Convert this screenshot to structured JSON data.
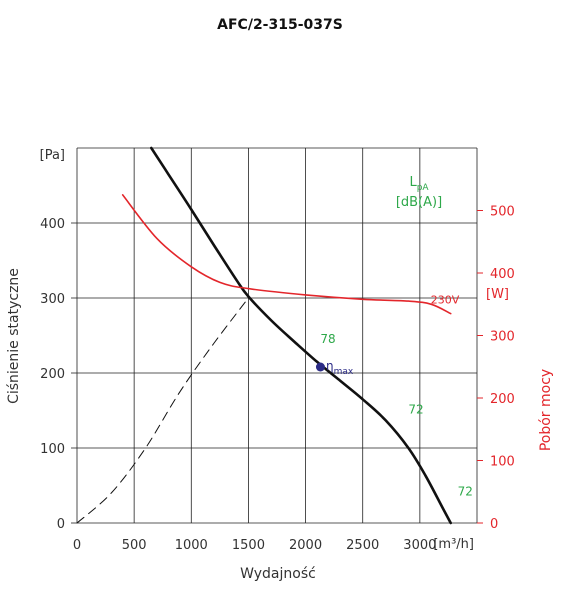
{
  "chart_data": {
    "type": "line",
    "title": "AFC/2-315-037S",
    "xlabel": "Wydajność",
    "x_unit": "[m³/h]",
    "xlim": [
      0,
      3500
    ],
    "x_ticks": [
      0,
      500,
      1000,
      1500,
      2000,
      2500,
      3000
    ],
    "ylabel": "Ciśnienie statyczne",
    "y_unit": "[Pa]",
    "ylim": [
      0,
      500
    ],
    "y_ticks": [
      0,
      100,
      200,
      300,
      400
    ],
    "y2label": "Pobór mocy",
    "y2_unit": "[W]",
    "y2lim": [
      0,
      600
    ],
    "y2_ticks": [
      0,
      100,
      200,
      300,
      400,
      500
    ],
    "grid": true,
    "legend_box": {
      "line1": "L",
      "line1_sub": "pA",
      "line2": "[dB(A)]",
      "placement": "top-right",
      "color": "#2ea84a"
    },
    "series": [
      {
        "kind": "pressure",
        "axis": "left",
        "color": "#111111",
        "x": [
          650,
          800,
          1000,
          1200,
          1400,
          1500,
          1700,
          1900,
          2100,
          2300,
          2500,
          2700,
          2900,
          3050,
          3200,
          3270
        ],
        "y": [
          500,
          465,
          418,
          370,
          323,
          302,
          270,
          242,
          215,
          190,
          165,
          137,
          100,
          63,
          20,
          0
        ]
      },
      {
        "name": "230V",
        "axis": "right",
        "color": "#e3262b",
        "x": [
          400,
          700,
          1000,
          1250,
          1500,
          2000,
          2500,
          2900,
          3100,
          3270
        ],
        "y": [
          525,
          455,
          410,
          385,
          375,
          365,
          358,
          355,
          350,
          335
        ]
      },
      {
        "kind": "system-curve",
        "axis": "left",
        "color": "#111111",
        "dash": true,
        "x": [
          0,
          300,
          600,
          900,
          1200,
          1500
        ],
        "y": [
          0,
          40,
          100,
          175,
          240,
          300
        ]
      }
    ],
    "marker": {
      "x": 2130,
      "y": 208,
      "label_base": "η",
      "label_sub": "max",
      "color": "#2b2b86"
    },
    "annotations": [
      {
        "text": "78",
        "x": 2130,
        "y": 240,
        "color": "#2ea84a"
      },
      {
        "text": "72",
        "x": 2900,
        "y": 146,
        "color": "#2ea84a"
      },
      {
        "text": "72",
        "x": 3330,
        "y": 37,
        "color": "#2ea84a"
      }
    ]
  }
}
